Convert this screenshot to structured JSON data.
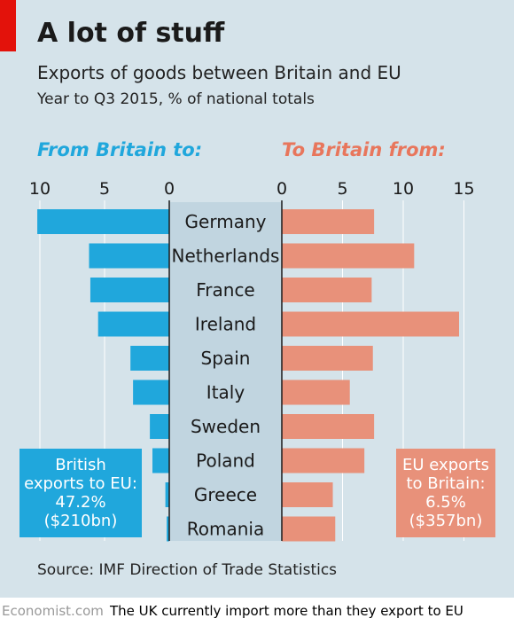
{
  "header": {
    "title": "A lot of stuff",
    "subtitle": "Exports of goods between Britain and EU",
    "subsubtitle": "Year to Q3 2015, % of national totals"
  },
  "left_panel": {
    "heading": "From Britain to:"
  },
  "right_panel": {
    "heading": "To Britain from:"
  },
  "callouts": {
    "left": [
      "British",
      "exports to EU:",
      "47.2%",
      "($210bn)"
    ],
    "right": [
      "EU exports",
      "to Britain:",
      "6.5%",
      "($357bn)"
    ]
  },
  "footer": {
    "source": "Source: IMF Direction of Trade Statistics",
    "brand": "Economist.com",
    "note": "The UK currently import more than they export to EU"
  },
  "colors": {
    "left_series": "#20a7dc",
    "right_series": "#e8917a",
    "background": "#d5e3ea",
    "accent": "#e3120b"
  },
  "chart_data": {
    "type": "bar",
    "orientation": "horizontal-butterfly",
    "categories": [
      "Germany",
      "Netherlands",
      "France",
      "Ireland",
      "Spain",
      "Italy",
      "Sweden",
      "Poland",
      "Greece",
      "Romania"
    ],
    "series": [
      {
        "name": "From Britain to:",
        "values": [
          10.2,
          6.2,
          6.1,
          5.5,
          3.0,
          2.8,
          1.5,
          1.3,
          0.3,
          0.2
        ],
        "xlim": [
          0,
          10
        ],
        "ticks": [
          10,
          5,
          0
        ]
      },
      {
        "name": "To Britain from:",
        "values": [
          7.6,
          10.9,
          7.4,
          14.6,
          7.5,
          5.6,
          7.6,
          6.8,
          4.2,
          4.4
        ],
        "xlim": [
          0,
          15
        ],
        "ticks": [
          0,
          5,
          10,
          15
        ]
      }
    ],
    "grid": true
  }
}
